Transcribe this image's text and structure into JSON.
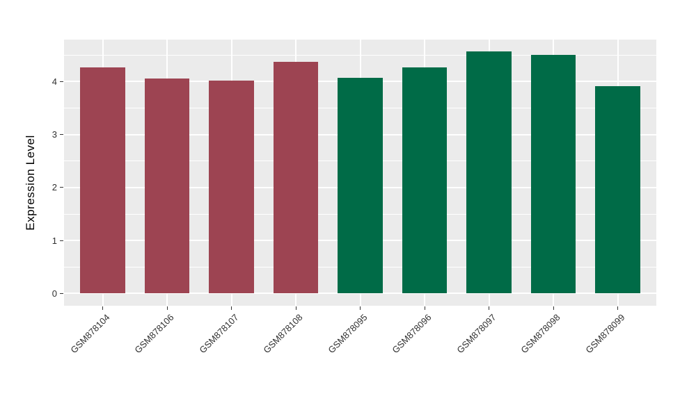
{
  "chart_data": {
    "type": "bar",
    "title": "",
    "xlabel": "",
    "ylabel": "Expression Level",
    "categories": [
      "GSM878104",
      "GSM878106",
      "GSM878107",
      "GSM878108",
      "GSM878095",
      "GSM878096",
      "GSM878097",
      "GSM878098",
      "GSM878099"
    ],
    "values": [
      4.27,
      4.06,
      4.02,
      4.37,
      4.07,
      4.27,
      4.57,
      4.5,
      3.91
    ],
    "bar_colors": [
      "#9D4452",
      "#9D4452",
      "#9D4452",
      "#9D4452",
      "#006B47",
      "#006B47",
      "#006B47",
      "#006B47",
      "#006B47"
    ],
    "y_tick_labels": [
      "0",
      "1",
      "2",
      "3",
      "4"
    ],
    "y_ticks": [
      0,
      1,
      2,
      3,
      4
    ],
    "y_minor_ticks": [
      0.5,
      1.5,
      2.5,
      3.5,
      4.5
    ],
    "ylim": [
      -0.23,
      4.79
    ],
    "x_label_angle_deg": -45,
    "grid": true,
    "legend": "none",
    "panel_background": "#EBEBEB",
    "grid_color": "#FFFFFF",
    "axis_text_color": "#303030",
    "bar_width_fraction": 0.7
  }
}
